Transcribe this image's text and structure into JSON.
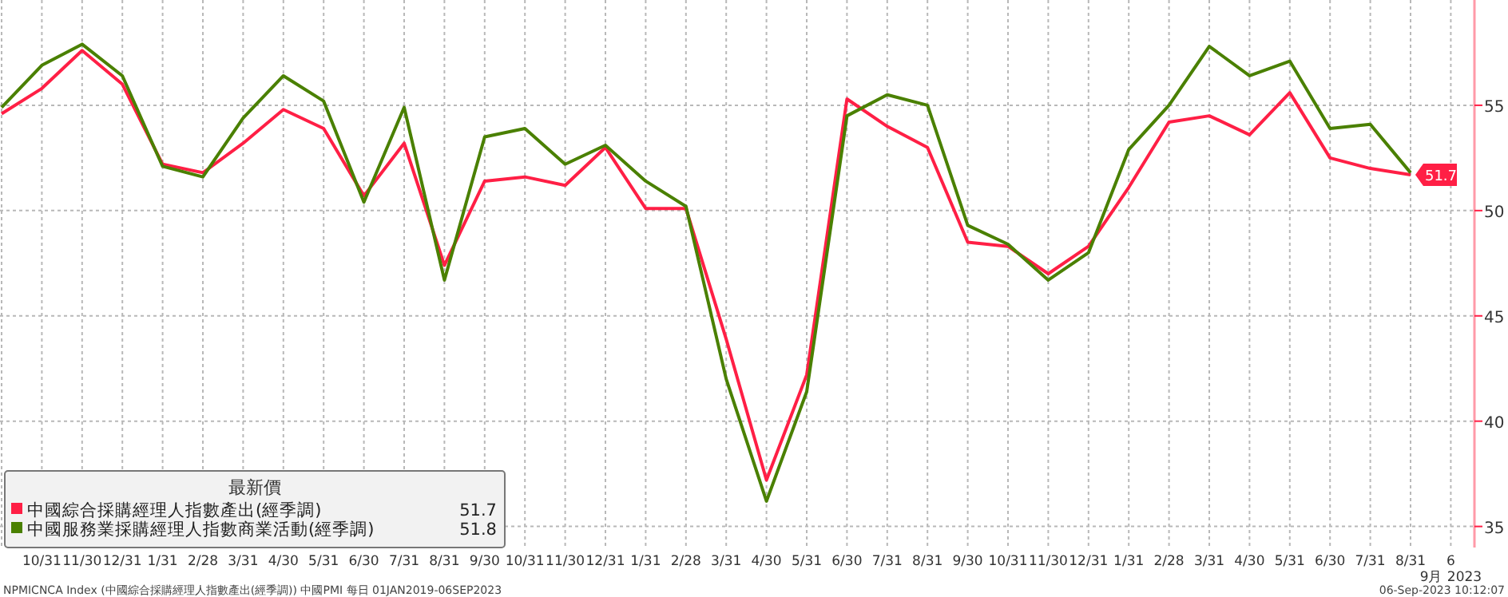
{
  "chart_data": {
    "type": "line",
    "legend_title": "最新價",
    "categories": [
      null,
      "10/31",
      "11/30",
      "12/31",
      "1/31",
      "2/28",
      "3/31",
      "4/30",
      "5/31",
      "6/30",
      "7/31",
      "8/31",
      "9/30",
      "10/31",
      "11/30",
      "12/31",
      "1/31",
      "2/28",
      "3/31",
      "4/30",
      "5/31",
      "6/30",
      "7/31",
      "8/31",
      "9/30",
      "10/31",
      "11/30",
      "12/31",
      "1/31",
      "2/28",
      "3/31",
      "4/30",
      "5/31",
      "6/30",
      "7/31",
      "8/31",
      "6"
    ],
    "series": [
      {
        "name": "中國綜合採購經理人指數產出(經季調)",
        "color": "#ff1f45",
        "values": [
          54.6,
          55.8,
          57.6,
          56.0,
          52.2,
          51.8,
          53.2,
          54.8,
          53.9,
          50.7,
          53.2,
          47.4,
          51.4,
          51.6,
          51.2,
          53.0,
          50.1,
          50.1,
          43.9,
          37.2,
          42.2,
          55.3,
          54.0,
          53.0,
          48.5,
          48.3,
          47.0,
          48.3,
          51.1,
          54.2,
          54.5,
          53.6,
          55.6,
          52.5,
          52.0,
          51.7,
          null
        ],
        "value_labels": [
          null,
          null,
          null,
          null,
          null,
          null,
          null,
          null,
          null,
          null,
          null,
          null,
          null,
          null,
          null,
          null,
          null,
          null,
          null,
          null,
          null,
          null,
          null,
          null,
          null,
          null,
          null,
          null,
          null,
          null,
          null,
          null,
          null,
          null,
          null,
          "51.7",
          null
        ]
      },
      {
        "name": "中國服務業採購經理人指數商業活動(經季調)",
        "color": "#4a8000",
        "values": [
          54.9,
          56.9,
          57.9,
          56.4,
          52.1,
          51.6,
          54.4,
          56.4,
          55.2,
          50.4,
          54.9,
          46.7,
          53.5,
          53.9,
          52.2,
          53.1,
          51.4,
          50.2,
          42.0,
          36.2,
          41.4,
          54.5,
          55.5,
          55.0,
          49.3,
          48.4,
          46.7,
          48.0,
          52.9,
          55.0,
          57.8,
          56.4,
          57.1,
          53.9,
          54.1,
          51.8,
          null
        ]
      }
    ],
    "ylim": [
      34,
      60
    ],
    "yticks": [
      35,
      40,
      45,
      50,
      55
    ],
    "grid": true,
    "legend": "bottom left",
    "line_style": "solid",
    "annotations": [
      "51.7",
      "51.8",
      "9月 2023",
      "NPMICNCA Index (中國綜合採購經理人指數產出(經季調)) 中國PMI 每日 01JAN2019-06SEP2023",
      "06-Sep-2023 10:12:07"
    ]
  }
}
